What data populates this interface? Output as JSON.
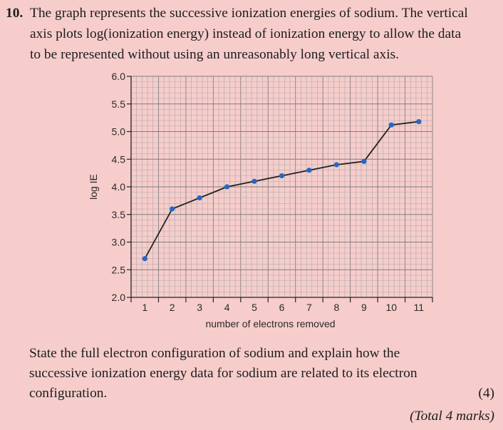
{
  "question": {
    "number": "10",
    "separator": ".",
    "lines": [
      "The graph represents the successive ionization energies of sodium. The vertical",
      "axis plots log(ionization energy) instead of ionization energy to allow the data",
      "to be represented without using an unreasonably long vertical axis."
    ]
  },
  "chart_data": {
    "type": "line",
    "title": "",
    "xlabel": "number of electrons removed",
    "ylabel": "log IE",
    "x": [
      1,
      2,
      3,
      4,
      5,
      6,
      7,
      8,
      9,
      10,
      11
    ],
    "series": [
      {
        "name": "log IE",
        "values": [
          2.7,
          3.6,
          3.8,
          4.0,
          4.1,
          4.2,
          4.3,
          4.4,
          4.46,
          5.12,
          5.18
        ],
        "color": "#2468c4"
      }
    ],
    "xlim": [
      0.5,
      11.5
    ],
    "ylim": [
      2.0,
      6.0
    ],
    "yticks": [
      "2.0",
      "2.5",
      "3.0",
      "3.5",
      "4.0",
      "4.5",
      "5.0",
      "5.5",
      "6.0"
    ],
    "xticks": [
      "1",
      "2",
      "3",
      "4",
      "5",
      "6",
      "7",
      "8",
      "9",
      "10",
      "11"
    ],
    "grid": true,
    "line_color": "#222222",
    "grid_color": "#a9a9a9",
    "grid_major_color": "#7f7f7f"
  },
  "prompt": {
    "lines": [
      "State the full electron configuration of sodium and explain how the",
      "successive ionization energy data for sodium are related to its electron",
      "configuration."
    ],
    "marks": "(4)",
    "total": "(Total 4 marks)"
  }
}
